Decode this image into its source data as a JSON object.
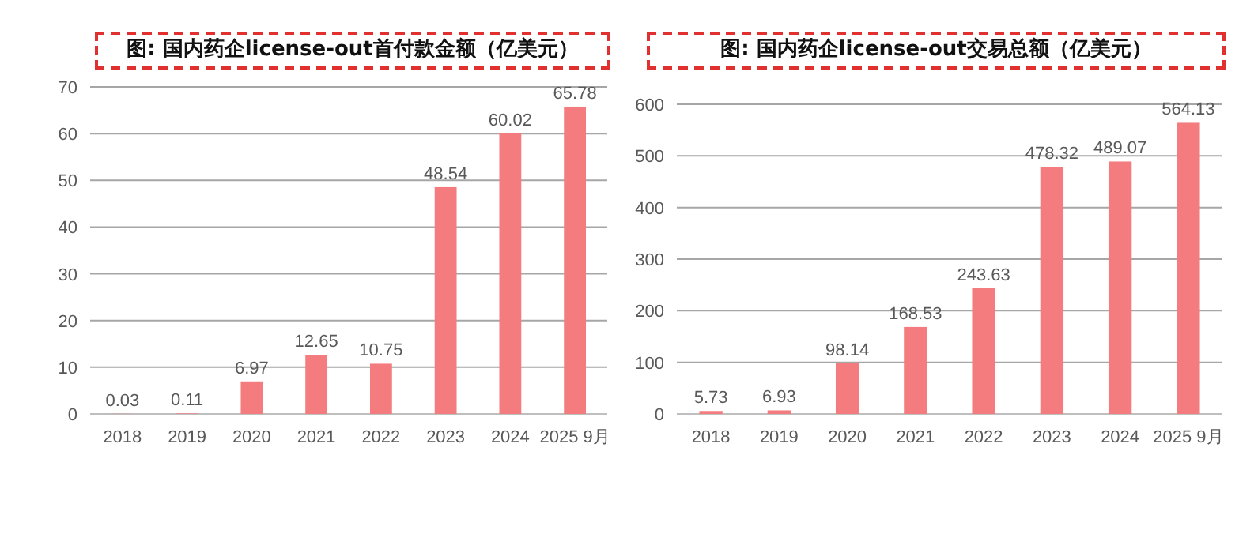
{
  "chart_data": [
    {
      "type": "bar",
      "title": "图: 国内药企license-out首付款金额（亿美元）",
      "categories": [
        "2018",
        "2019",
        "2020",
        "2021",
        "2022",
        "2023",
        "2024",
        "2025 9月"
      ],
      "values": [
        0.03,
        0.11,
        6.97,
        12.65,
        10.75,
        48.54,
        60.02,
        65.78
      ],
      "color": "#f47c7e",
      "ylim": [
        0,
        70
      ],
      "yticks": [
        0,
        10,
        20,
        30,
        40,
        50,
        60,
        70
      ],
      "grid": "y",
      "data_labels": true
    },
    {
      "type": "bar",
      "title": "图: 国内药企license-out交易总额（亿美元）",
      "categories": [
        "2018",
        "2019",
        "2020",
        "2021",
        "2022",
        "2023",
        "2024",
        "2025 9月"
      ],
      "values": [
        5.73,
        6.93,
        98.14,
        168.53,
        243.63,
        478.32,
        489.07,
        564.13
      ],
      "color": "#f47c7e",
      "ylim": [
        0,
        600
      ],
      "yticks": [
        0,
        100,
        200,
        300,
        400,
        500,
        600
      ],
      "grid": "y",
      "data_labels": true
    }
  ]
}
